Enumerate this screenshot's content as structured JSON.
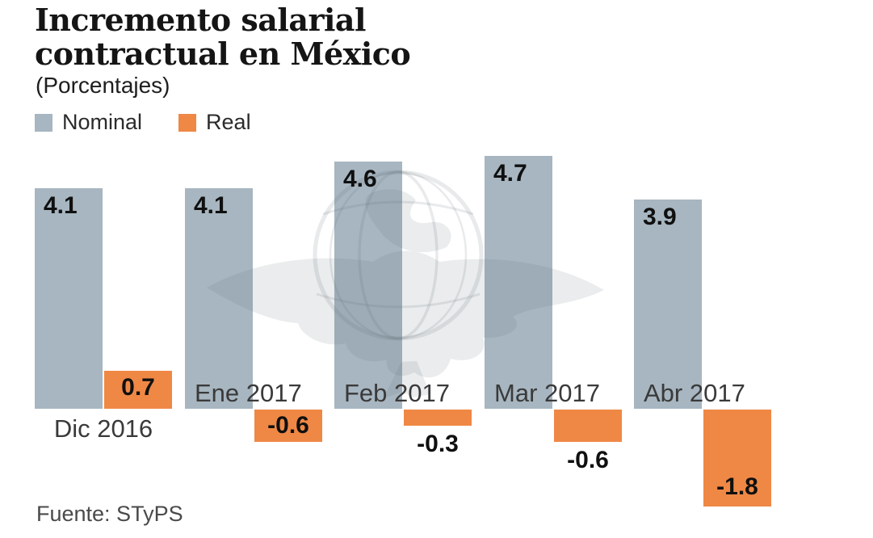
{
  "header": {
    "title": "Incremento salarial contractual en México",
    "subtitle": "(Porcentajes)"
  },
  "source": "Fuente: STyPS",
  "watermark_icon": "eagle-globe-newspaper-watermark",
  "colors": {
    "nominal": "#a7b6c0",
    "real": "#ef8845",
    "title_text": "#151515",
    "label_text": "#101010",
    "month_text": "#3a3a3a",
    "source_text": "#4a4a4a"
  },
  "chart_data": {
    "type": "bar",
    "title": "Incremento salarial contractual en México",
    "subtitle": "(Porcentajes)",
    "source": "Fuente: STyPS",
    "categories": [
      "Dic 2016",
      "Ene 2017",
      "Feb 2017",
      "Mar 2017",
      "Abr 2017"
    ],
    "series": [
      {
        "name": "Nominal",
        "color": "#a7b6c0",
        "values": [
          4.1,
          4.1,
          4.6,
          4.7,
          3.9
        ]
      },
      {
        "name": "Real",
        "color": "#ef8845",
        "values": [
          0.7,
          -0.6,
          -0.3,
          -0.6,
          -1.8
        ]
      }
    ],
    "xlabel": "",
    "ylabel": "",
    "ylim": [
      -2,
      5
    ],
    "grid": false,
    "axis_line": false,
    "legend_position": "top-left",
    "value_labels": true,
    "real_label_placement": [
      "inside-top",
      "inside-mid",
      "below-bar",
      "below-bar",
      "inside-bottom"
    ]
  }
}
